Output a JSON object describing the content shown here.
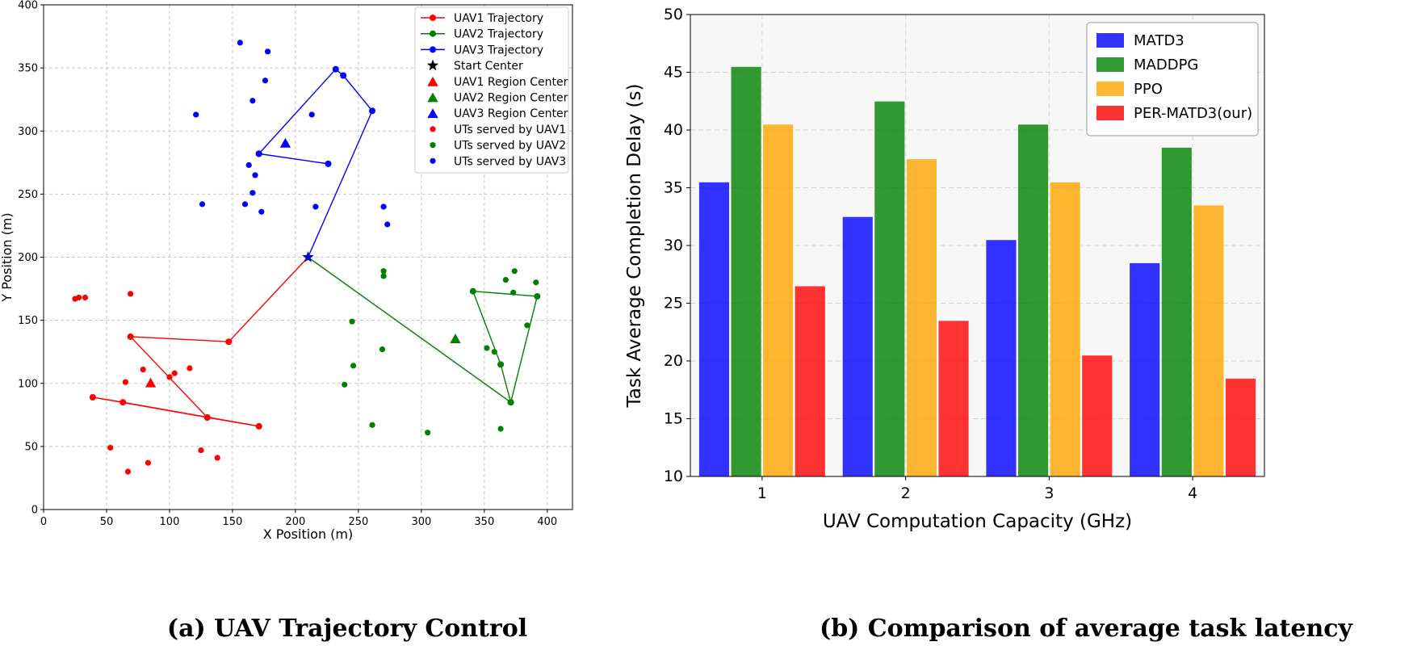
{
  "captions": {
    "left": "(a) UAV Trajectory Control",
    "right": "(b) Comparison of average task latency"
  },
  "chart_data": [
    {
      "type": "scatter",
      "title": "",
      "xlabel": "X Position (m)",
      "ylabel": "Y Position (m)",
      "xlim": [
        0,
        420
      ],
      "ylim": [
        0,
        400
      ],
      "xticks": [
        0,
        50,
        100,
        150,
        200,
        250,
        300,
        350,
        400
      ],
      "yticks": [
        0,
        50,
        100,
        150,
        200,
        250,
        300,
        350,
        400
      ],
      "grid": true,
      "legend_position": "top-right",
      "legend": [
        {
          "label": "UAV1 Trajectory",
          "kind": "line",
          "color": "#ff0000"
        },
        {
          "label": "UAV2 Trajectory",
          "kind": "line",
          "color": "#008000"
        },
        {
          "label": "UAV3 Trajectory",
          "kind": "line",
          "color": "#0000ff"
        },
        {
          "label": "Start Center",
          "kind": "star",
          "color": "#000000"
        },
        {
          "label": "UAV1 Region Center",
          "kind": "triangle",
          "color": "#ff0000"
        },
        {
          "label": "UAV2 Region Center",
          "kind": "triangle",
          "color": "#008000"
        },
        {
          "label": "UAV3 Region Center",
          "kind": "triangle",
          "color": "#0000ff"
        },
        {
          "label": "UTs served by UAV1",
          "kind": "dot",
          "color": "#ff0000"
        },
        {
          "label": "UTs served by UAV2",
          "kind": "dot",
          "color": "#008000"
        },
        {
          "label": "UTs served by UAV3",
          "kind": "dot",
          "color": "#0000ff"
        }
      ],
      "start_center": [
        210,
        200
      ],
      "trajectories": [
        {
          "name": "UAV1 Trajectory",
          "color": "#ff0000",
          "points": [
            [
              210,
              200
            ],
            [
              147,
              133
            ],
            [
              69,
              137
            ],
            [
              130,
              73
            ],
            [
              171,
              66
            ],
            [
              63,
              85
            ],
            [
              39,
              89
            ],
            [
              130,
              73
            ]
          ]
        },
        {
          "name": "UAV2 Trajectory",
          "color": "#008000",
          "points": [
            [
              210,
              200
            ],
            [
              371,
              85
            ],
            [
              392,
              169
            ],
            [
              341,
              173
            ],
            [
              363,
              115
            ],
            [
              371,
              85
            ]
          ]
        },
        {
          "name": "UAV3 Trajectory",
          "color": "#0000ff",
          "points": [
            [
              210,
              200
            ],
            [
              261,
              316
            ],
            [
              238,
              344
            ],
            [
              232,
              349
            ],
            [
              171,
              282
            ],
            [
              226,
              274
            ],
            [
              171,
              282
            ]
          ]
        }
      ],
      "region_centers": [
        {
          "name": "UAV1 Region Center",
          "color": "#ff0000",
          "point": [
            85,
            100
          ]
        },
        {
          "name": "UAV2 Region Center",
          "color": "#008000",
          "point": [
            327,
            135
          ]
        },
        {
          "name": "UAV3 Region Center",
          "color": "#0000ff",
          "point": [
            192,
            290
          ]
        }
      ],
      "user_terminals": [
        {
          "name": "UTs served by UAV1",
          "color": "#ff0000",
          "points": [
            [
              25,
              167
            ],
            [
              28,
              168
            ],
            [
              33,
              168
            ],
            [
              69,
              171
            ],
            [
              69,
              137
            ],
            [
              79,
              111
            ],
            [
              65,
              101
            ],
            [
              100,
              105
            ],
            [
              104,
              108
            ],
            [
              116,
              112
            ],
            [
              39,
              89
            ],
            [
              63,
              85
            ],
            [
              130,
              73
            ],
            [
              171,
              66
            ],
            [
              53,
              49
            ],
            [
              125,
              47
            ],
            [
              138,
              41
            ],
            [
              83,
              37
            ],
            [
              67,
              30
            ]
          ]
        },
        {
          "name": "UTs served by UAV2",
          "color": "#008000",
          "points": [
            [
              270,
              189
            ],
            [
              270,
              185
            ],
            [
              374,
              189
            ],
            [
              367,
              182
            ],
            [
              391,
              180
            ],
            [
              341,
              173
            ],
            [
              373,
              172
            ],
            [
              392,
              169
            ],
            [
              245,
              149
            ],
            [
              384,
              146
            ],
            [
              269,
              127
            ],
            [
              352,
              128
            ],
            [
              358,
              125
            ],
            [
              246,
              114
            ],
            [
              363,
              115
            ],
            [
              239,
              99
            ],
            [
              371,
              85
            ],
            [
              261,
              67
            ],
            [
              305,
              61
            ],
            [
              363,
              64
            ]
          ]
        },
        {
          "name": "UTs served by UAV3",
          "color": "#0000ff",
          "points": [
            [
              156,
              370
            ],
            [
              178,
              363
            ],
            [
              176,
              340
            ],
            [
              166,
              324
            ],
            [
              232,
              349
            ],
            [
              238,
              344
            ],
            [
              261,
              316
            ],
            [
              121,
              313
            ],
            [
              213,
              313
            ],
            [
              171,
              282
            ],
            [
              226,
              274
            ],
            [
              163,
              273
            ],
            [
              168,
              265
            ],
            [
              166,
              251
            ],
            [
              160,
              242
            ],
            [
              126,
              242
            ],
            [
              173,
              236
            ],
            [
              216,
              240
            ],
            [
              270,
              240
            ],
            [
              273,
              226
            ]
          ]
        }
      ]
    },
    {
      "type": "bar",
      "title": "",
      "xlabel": "UAV Computation Capacity (GHz)",
      "ylabel": "Task Average Completion Delay (s)",
      "categories": [
        "1",
        "2",
        "3",
        "4"
      ],
      "ylim": [
        10,
        50
      ],
      "yticks": [
        10,
        15,
        20,
        25,
        30,
        35,
        40,
        45,
        50
      ],
      "grid": true,
      "legend_position": "top-right",
      "series": [
        {
          "name": "MATD3",
          "color": "#0000ff",
          "values": [
            35.5,
            32.5,
            30.5,
            28.5
          ]
        },
        {
          "name": "MADDPG",
          "color": "#008000",
          "values": [
            45.5,
            42.5,
            40.5,
            38.5
          ]
        },
        {
          "name": "PPO",
          "color": "#ffa500",
          "values": [
            40.5,
            37.5,
            35.5,
            33.5
          ]
        },
        {
          "name": "PER-MATD3(our)",
          "color": "#ff0000",
          "values": [
            26.5,
            23.5,
            20.5,
            18.5
          ]
        }
      ]
    }
  ]
}
